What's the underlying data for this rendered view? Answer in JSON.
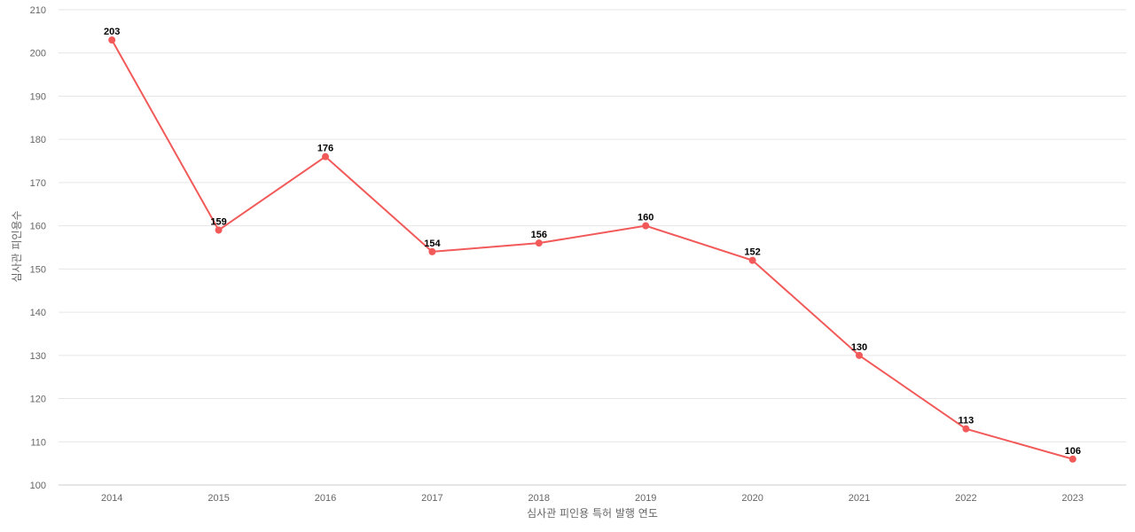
{
  "chart_data": {
    "type": "line",
    "title": "",
    "xlabel": "심사관 피인용 특허 발행 연도",
    "ylabel": "심사관 피인용수",
    "categories": [
      "2014",
      "2015",
      "2016",
      "2017",
      "2018",
      "2019",
      "2020",
      "2021",
      "2022",
      "2023"
    ],
    "series": [
      {
        "values": [
          203,
          159,
          176,
          154,
          156,
          160,
          152,
          130,
          113,
          106
        ]
      }
    ],
    "ylim": [
      100,
      210
    ],
    "yticks": [
      100,
      110,
      120,
      130,
      140,
      150,
      160,
      170,
      180,
      190,
      200,
      210
    ],
    "grid": true,
    "data_labels": true,
    "legend": "none",
    "colors": {
      "line": "#f25a5a",
      "grid": "#e6e6e6",
      "text": "#666666"
    }
  }
}
